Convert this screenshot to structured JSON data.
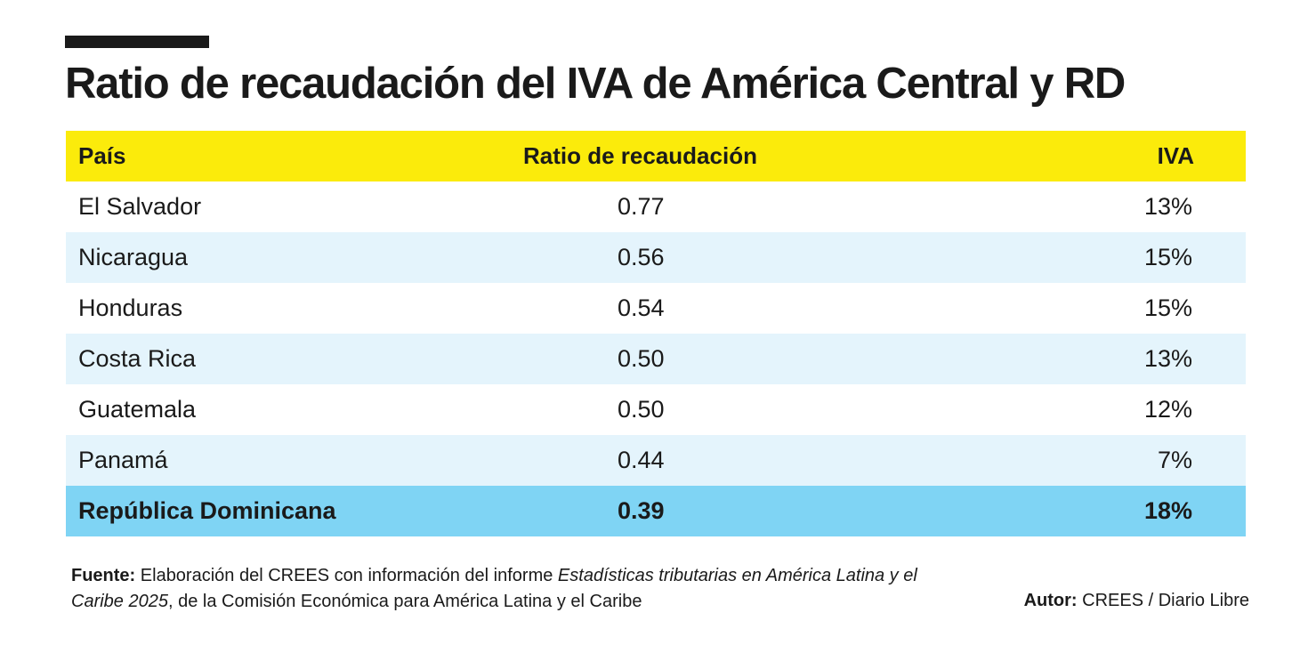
{
  "title": "Ratio de recaudación del IVA de América Central y RD",
  "table": {
    "headers": {
      "country": "País",
      "ratio": "Ratio de recaudación",
      "iva": "IVA"
    },
    "rows": [
      {
        "country": "El Salvador",
        "ratio": "0.77",
        "iva": "13%"
      },
      {
        "country": "Nicaragua",
        "ratio": "0.56",
        "iva": "15%"
      },
      {
        "country": "Honduras",
        "ratio": "0.54",
        "iva": "15%"
      },
      {
        "country": "Costa Rica",
        "ratio": "0.50",
        "iva": "13%"
      },
      {
        "country": "Guatemala",
        "ratio": "0.50",
        "iva": "12%"
      },
      {
        "country": "Panamá",
        "ratio": "0.44",
        "iva": "7%"
      },
      {
        "country": "República Dominicana",
        "ratio": "0.39",
        "iva": "18%"
      }
    ]
  },
  "footer": {
    "source_label": "Fuente:",
    "source_text_1": "Elaboración del CREES con información del informe",
    "source_italic": "Estadísticas tributarias en América Latina y el Caribe 2025",
    "source_text_2": ", de la Comisión Económica para América Latina y el Caribe",
    "author_label": "Autor:",
    "author_text": "CREES / Diario Libre"
  },
  "colors": {
    "header_bg": "#fbeb0b",
    "alt_row_bg": "#e4f4fc",
    "highlight_row_bg": "#7fd4f4",
    "text": "#1a1a1a"
  }
}
